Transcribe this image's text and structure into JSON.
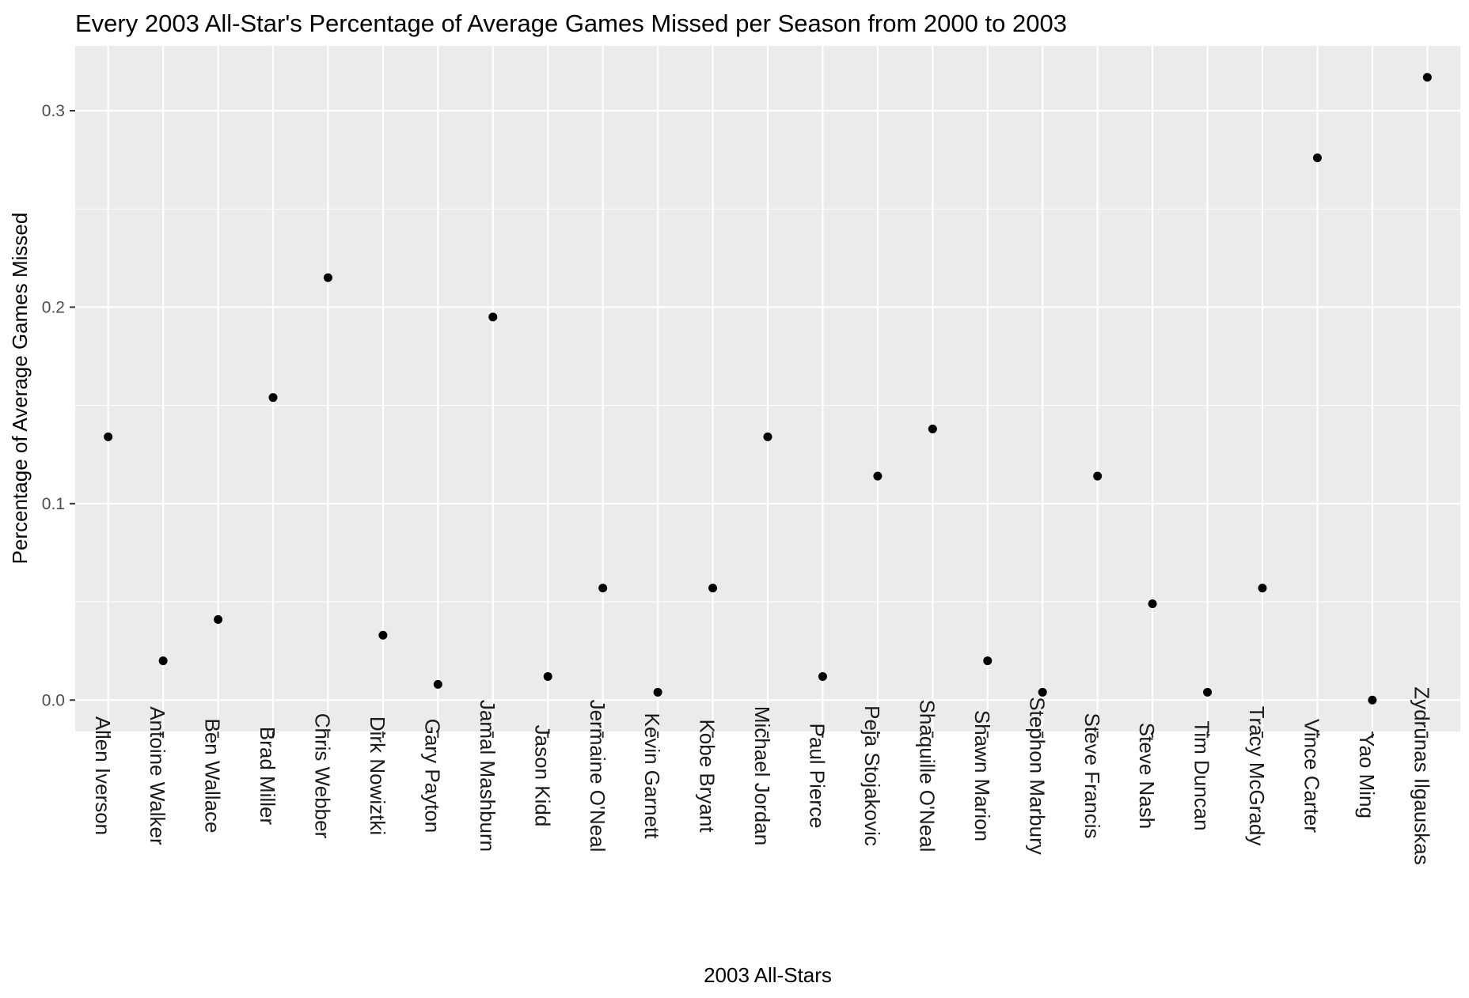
{
  "chart_data": {
    "type": "scatter",
    "title": "Every 2003 All-Star's Percentage of Average Games Missed per Season from 2000 to 2003",
    "xlabel": "2003 All-Stars",
    "ylabel": "Percentage of Average Games Missed",
    "ylim": [
      -0.016,
      0.333
    ],
    "yticks": [
      "0.0",
      "0.1",
      "0.2",
      "0.3"
    ],
    "ytick_values": [
      0.0,
      0.1,
      0.2,
      0.3
    ],
    "grid": true,
    "categories": [
      "Allen Iverson",
      "Antoine Walker",
      "Ben Wallace",
      "Brad Miller",
      "Chris Webber",
      "Dirk Nowiztki",
      "Gary Payton",
      "Jamal Mashburn",
      "Jason Kidd",
      "Jermaine O'Neal",
      "Kevin Garnett",
      "Kobe Bryant",
      "Michael Jordan",
      "Paul Pierce",
      "Peja Stojakovic",
      "Shaquille O'Neal",
      "Shawn Marion",
      "Stephon Marbury",
      "Steve Francis",
      "Steve Nash",
      "Tim Duncan",
      "Tracy McGrady",
      "Vince Carter",
      "Yao Ming",
      "Zydrunas Ilgauskas"
    ],
    "values": [
      0.134,
      0.02,
      0.041,
      0.154,
      0.215,
      0.033,
      0.008,
      0.195,
      0.012,
      0.057,
      0.004,
      0.057,
      0.134,
      0.012,
      0.114,
      0.138,
      0.02,
      0.004,
      0.114,
      0.049,
      0.004,
      0.057,
      0.276,
      0.0,
      0.317
    ],
    "colors": {
      "panel": "#ebebeb",
      "grid": "#ffffff",
      "point": "#000000",
      "tick": "#333333"
    }
  }
}
